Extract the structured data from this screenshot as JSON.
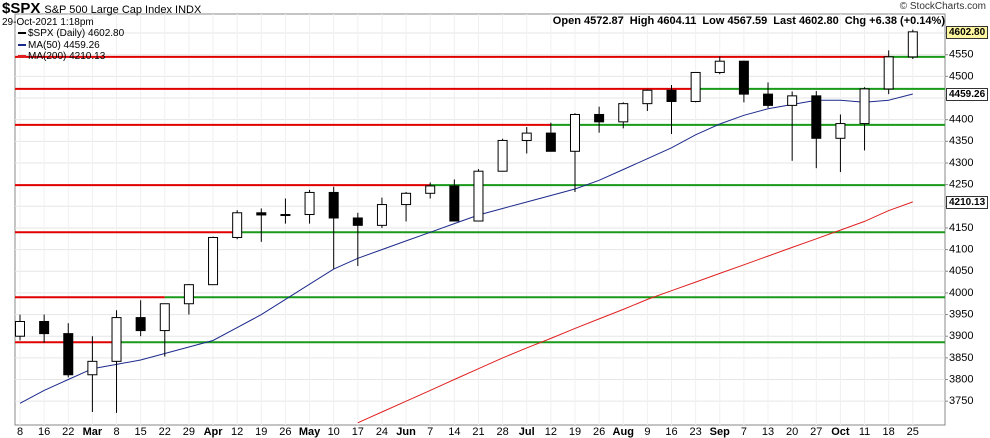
{
  "header": {
    "symbol": "$SPX",
    "name": "S&P 500 Large Cap Index INDX",
    "date": "29-Oct-2021 1:18pm",
    "copyright": "© StockCharts.com",
    "quote": [
      {
        "label": "Open",
        "value": "4572.87"
      },
      {
        "label": "High",
        "value": "4604.11"
      },
      {
        "label": "Low",
        "value": "4567.59"
      },
      {
        "label": "Last",
        "value": "4602.80"
      },
      {
        "label": "Chg",
        "value": "+6.38 (+0.14%)"
      }
    ]
  },
  "chart_data": {
    "type": "candlestick",
    "categories": [
      "8",
      "16",
      "22",
      "Mar",
      "8",
      "15",
      "22",
      "29",
      "Apr",
      "12",
      "19",
      "26",
      "May",
      "10",
      "17",
      "24",
      "Jun",
      "7",
      "14",
      "21",
      "28",
      "Jul",
      "12",
      "19",
      "26",
      "Aug",
      "9",
      "16",
      "23",
      "Sep",
      "7",
      "13",
      "20",
      "27",
      "Oct",
      "11",
      "18",
      "25"
    ],
    "price": {
      "name": "$SPX (Daily) 4602.80",
      "last_label": "4602.80",
      "up_color": "#ffffff",
      "down_color": "#000000",
      "open": [
        3900,
        3934,
        3906,
        3811,
        3842,
        3943,
        3913,
        3975,
        4019,
        4128,
        4185,
        4180,
        4181,
        4232,
        4173,
        4156,
        4204,
        4230,
        4247,
        4166,
        4281,
        4352,
        4369,
        4327,
        4412,
        4395,
        4437,
        4468,
        4442,
        4509,
        4535,
        4459,
        4433,
        4455,
        4357,
        4391,
        4471,
        4545
      ],
      "high": [
        3950,
        3950,
        3930,
        3900,
        3960,
        3983,
        3975,
        4020,
        4130,
        4191,
        4195,
        4218,
        4238,
        4245,
        4185,
        4220,
        4233,
        4255,
        4262,
        4286,
        4356,
        4383,
        4393,
        4415,
        4430,
        4440,
        4470,
        4480,
        4510,
        4546,
        4536,
        4486,
        4465,
        4466,
        4412,
        4475,
        4560,
        4608
      ],
      "low": [
        3890,
        3885,
        3805,
        3725,
        3723,
        3900,
        3853,
        3950,
        4019,
        4124,
        4118,
        4160,
        4160,
        4056,
        4062,
        4150,
        4165,
        4218,
        4165,
        4165,
        4280,
        4322,
        4333,
        4233,
        4370,
        4380,
        4420,
        4367,
        4440,
        4505,
        4440,
        4427,
        4305,
        4288,
        4279,
        4329,
        4459,
        4540
      ],
      "close": [
        3934,
        3906,
        3811,
        3842,
        3943,
        3913,
        3975,
        4019,
        4128,
        4185,
        4180,
        4181,
        4232,
        4173,
        4156,
        4204,
        4230,
        4247,
        4166,
        4281,
        4352,
        4369,
        4327,
        4412,
        4395,
        4437,
        4468,
        4442,
        4509,
        4535,
        4459,
        4433,
        4455,
        4357,
        4391,
        4471,
        4545,
        4602.8
      ]
    },
    "series": [
      {
        "name": "MA(50) 4459.26",
        "last_label": "4459.26",
        "color": "#1c2a8c",
        "values": [
          3745,
          3775,
          3800,
          3825,
          3835,
          3845,
          3860,
          3875,
          3890,
          3920,
          3950,
          3985,
          4020,
          4055,
          4080,
          4100,
          4120,
          4140,
          4160,
          4180,
          4195,
          4210,
          4225,
          4240,
          4260,
          4285,
          4310,
          4335,
          4365,
          4390,
          4410,
          4425,
          4435,
          4445,
          4445,
          4440,
          4445,
          4459.26
        ]
      },
      {
        "name": "MA(200) 4210.13",
        "last_label": "4210.13",
        "color": "#e02020",
        "values": [
          null,
          null,
          null,
          null,
          null,
          null,
          null,
          null,
          null,
          null,
          null,
          null,
          null,
          null,
          3700,
          3725,
          3750,
          3775,
          3800,
          3825,
          3850,
          3873,
          3895,
          3918,
          3940,
          3962,
          3985,
          4005,
          4025,
          4045,
          4065,
          4085,
          4105,
          4125,
          4145,
          4165,
          4190,
          4210.13
        ]
      }
    ],
    "levels": [
      {
        "value": 4545,
        "colors": [
          "#e00000",
          "#1a9a1a"
        ],
        "split_at": 36
      },
      {
        "value": 4471,
        "colors": [
          "#e00000",
          "#1a9a1a"
        ],
        "split_at": 28
      },
      {
        "value": 4388,
        "colors": [
          "#e00000",
          "#1a9a1a"
        ],
        "split_at": 22
      },
      {
        "value": 4249,
        "colors": [
          "#e00000",
          "#1a9a1a"
        ],
        "split_at": 17
      },
      {
        "value": 4140,
        "colors": [
          "#e00000",
          "#1a9a1a"
        ],
        "split_at": 9
      },
      {
        "value": 3990,
        "colors": [
          "#e00000",
          "#1a9a1a"
        ],
        "split_at": 6
      },
      {
        "value": 3886,
        "colors": [
          "#e00000",
          "#1a9a1a"
        ],
        "split_at": 4
      }
    ],
    "ylim": [
      3695,
      4644
    ],
    "yticks": [
      3750,
      3800,
      3850,
      3900,
      3950,
      4000,
      4050,
      4100,
      4150,
      4200,
      4250,
      4300,
      4350,
      4400,
      4450,
      4500,
      4550,
      4600
    ],
    "grid": true
  }
}
